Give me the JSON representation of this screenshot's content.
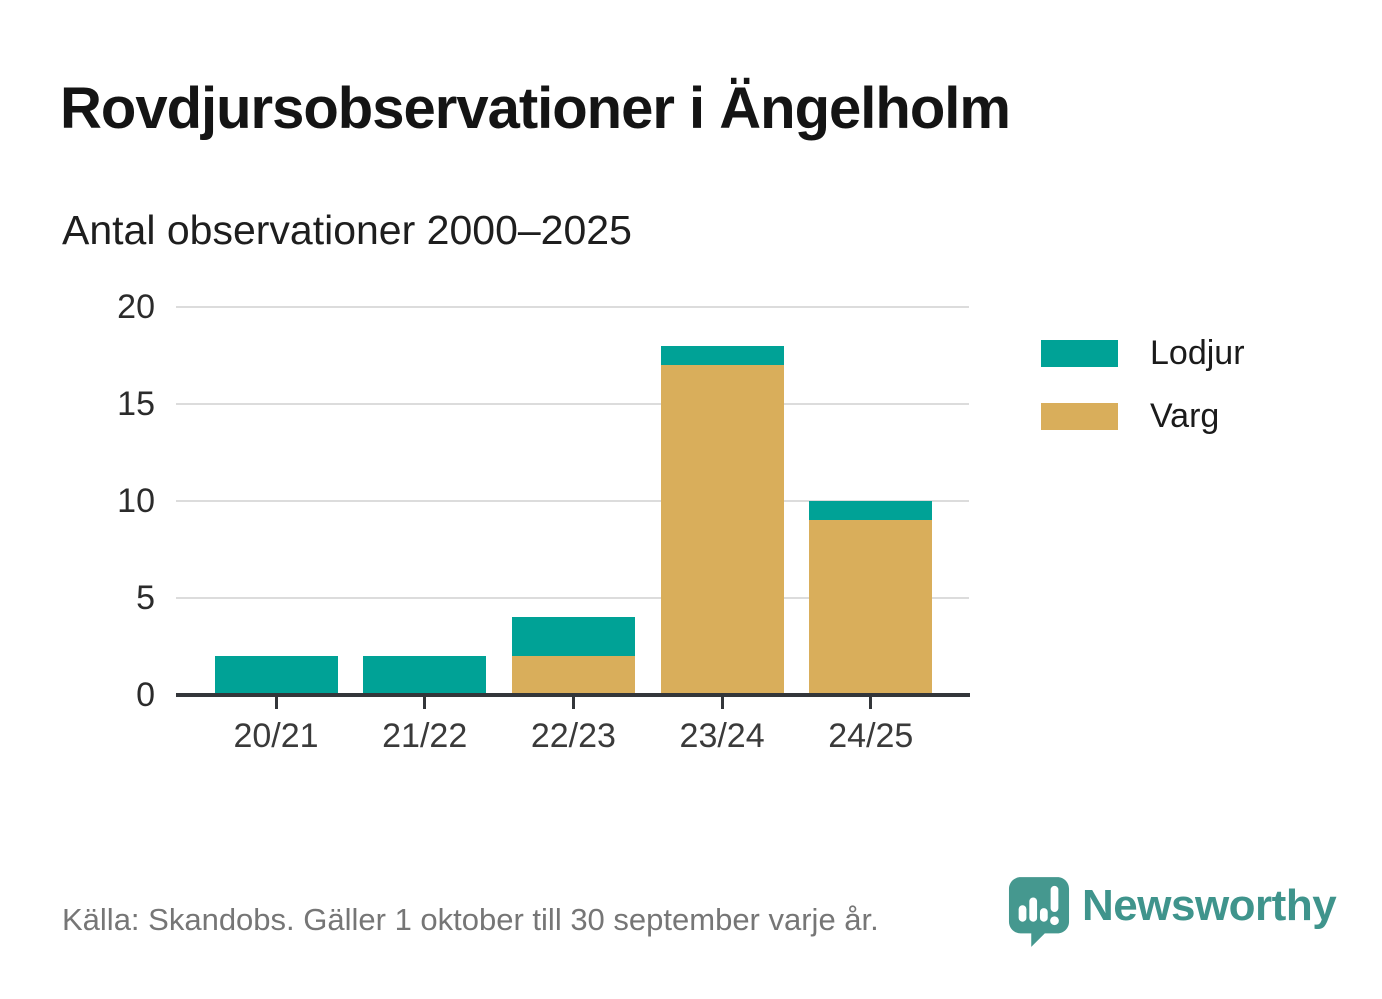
{
  "header": {
    "title": "Rovdjursobservationer i Ängelholm",
    "subtitle": "Antal observationer 2000–2025"
  },
  "chart_data": {
    "type": "bar",
    "stacked": true,
    "title": "Rovdjursobservationer i Ängelholm",
    "subtitle": "Antal observationer 2000–2025",
    "categories": [
      "20/21",
      "21/22",
      "22/23",
      "23/24",
      "24/25"
    ],
    "series": [
      {
        "name": "Lodjur",
        "color": "#00a296",
        "values": [
          2,
          2,
          2,
          1,
          1
        ]
      },
      {
        "name": "Varg",
        "color": "#d9ae5b",
        "values": [
          0,
          0,
          2,
          17,
          9
        ]
      }
    ],
    "stack_order_bottom_to_top": [
      "Varg",
      "Lodjur"
    ],
    "totals": [
      2,
      2,
      4,
      18,
      10
    ],
    "xlabel": "",
    "ylabel": "",
    "ylim": [
      0,
      20
    ],
    "yticks": [
      0,
      5,
      10,
      15,
      20
    ],
    "grid": "horizontal-only",
    "grid_color": "#dcdcdc",
    "axis_color": "#33363a",
    "tick_label_color": "#3a3a3a",
    "legend_position": "right-top",
    "legend": [
      "Lodjur",
      "Varg"
    ]
  },
  "footer": {
    "source": "Källa: Skandobs. Gäller 1 oktober till 30 september varje år.",
    "brand": {
      "name": "Newsworthy",
      "wordmark_color": "#3f948c",
      "icon": "newsworthy-speech-bubble-chart-icon",
      "icon_color": "#45988f"
    }
  }
}
